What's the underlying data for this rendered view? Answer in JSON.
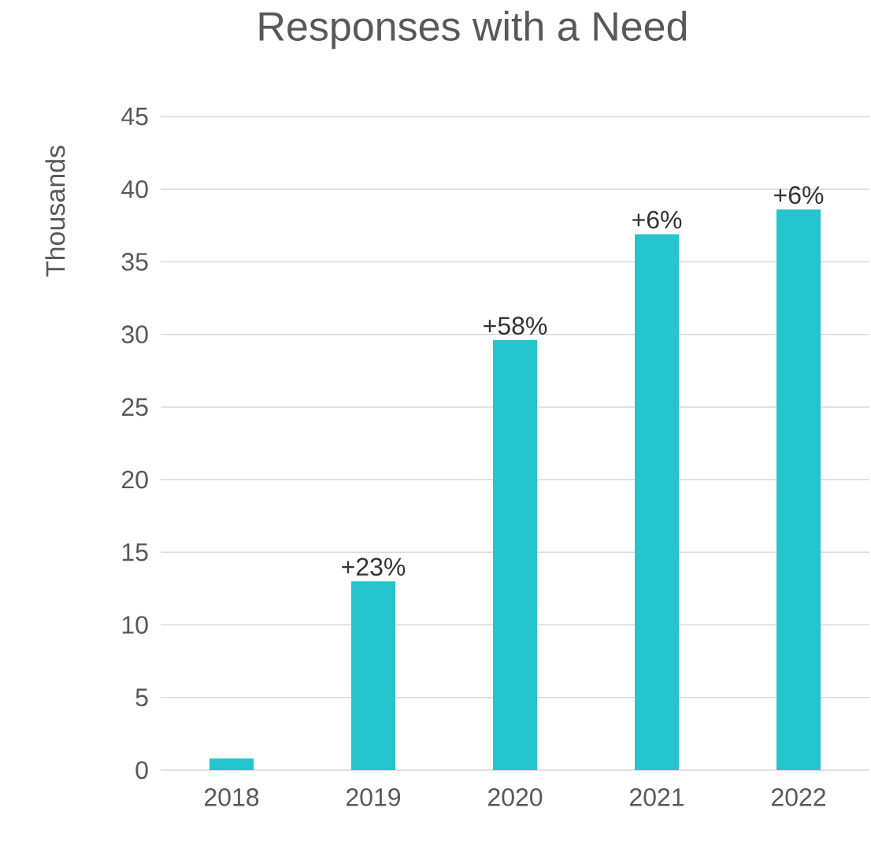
{
  "chart_data": {
    "type": "bar",
    "title": "Responses with a Need",
    "ylabel": "Thousands",
    "categories": [
      "2018",
      "2019",
      "2020",
      "2021",
      "2022"
    ],
    "values": [
      0.8,
      13.0,
      29.6,
      36.9,
      38.6
    ],
    "annotations": [
      {
        "text": "+23%",
        "x": "2019",
        "y": 13.0
      },
      {
        "text": "+58%",
        "x": "2020",
        "y": 29.6
      },
      {
        "text": "+6%",
        "x": "2021",
        "y": 36.9
      },
      {
        "text": "+6%",
        "x": "2022",
        "y": 38.6
      }
    ],
    "color": "#26c4cc",
    "ylim": [
      0,
      45
    ],
    "yticks": [
      0,
      5,
      10,
      15,
      20,
      25,
      30,
      35,
      40,
      45
    ],
    "grid": "y"
  }
}
